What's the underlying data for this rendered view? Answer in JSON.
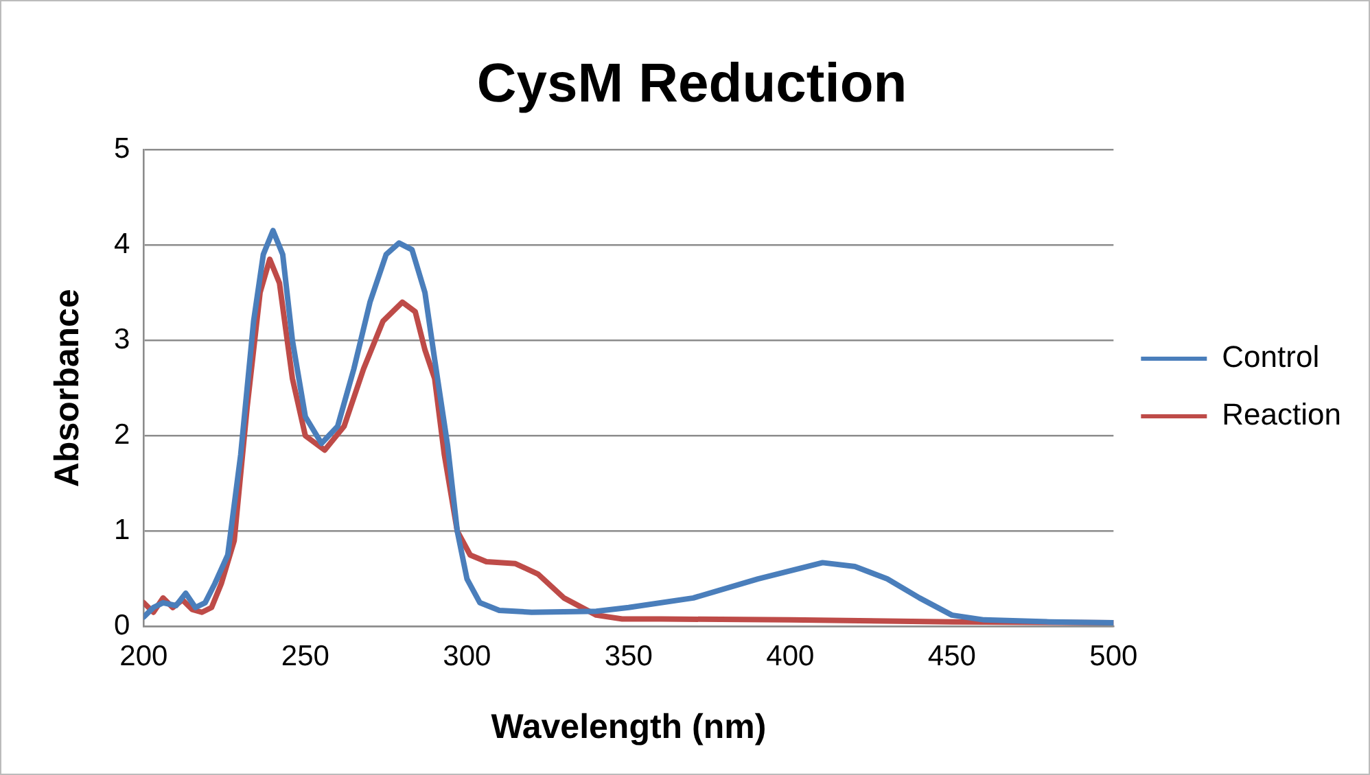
{
  "chart_data": {
    "type": "line",
    "title": "CysM Reduction",
    "xlabel": "Wavelength (nm)",
    "ylabel": "Absorbance",
    "xlim": [
      200,
      500
    ],
    "xticks": [
      200,
      250,
      300,
      350,
      400,
      450,
      500
    ],
    "ylim": [
      0,
      5
    ],
    "yticks": [
      0,
      1,
      2,
      3,
      4,
      5
    ],
    "grid": "y",
    "legend": "right",
    "marker": "none",
    "line_style": "solid",
    "series": [
      {
        "name": "Control",
        "color": "#4a7ebb",
        "x": [
          200,
          203,
          206,
          210,
          213,
          216,
          219,
          222,
          226,
          230,
          234,
          237,
          240,
          243,
          246,
          250,
          255,
          260,
          265,
          270,
          275,
          279,
          283,
          287,
          290,
          294,
          297,
          300,
          304,
          310,
          320,
          340,
          350,
          370,
          390,
          410,
          420,
          430,
          440,
          450,
          460,
          480,
          500
        ],
        "values": [
          0.1,
          0.2,
          0.25,
          0.22,
          0.35,
          0.2,
          0.25,
          0.45,
          0.75,
          1.8,
          3.2,
          3.9,
          4.15,
          3.9,
          3.0,
          2.2,
          1.92,
          2.1,
          2.7,
          3.4,
          3.9,
          4.02,
          3.95,
          3.5,
          2.8,
          1.9,
          1.0,
          0.5,
          0.25,
          0.17,
          0.15,
          0.16,
          0.2,
          0.3,
          0.5,
          0.67,
          0.63,
          0.5,
          0.3,
          0.12,
          0.07,
          0.05,
          0.04
        ]
      },
      {
        "name": "Reaction",
        "color": "#be4b48",
        "x": [
          200,
          203,
          206,
          209,
          212,
          215,
          218,
          221,
          224,
          228,
          232,
          236,
          239,
          242,
          246,
          250,
          256,
          262,
          268,
          274,
          280,
          284,
          287,
          290,
          293,
          297,
          301,
          306,
          315,
          322,
          330,
          340,
          348,
          360,
          400,
          450,
          500
        ],
        "values": [
          0.25,
          0.15,
          0.3,
          0.2,
          0.28,
          0.18,
          0.15,
          0.2,
          0.45,
          0.9,
          2.3,
          3.5,
          3.85,
          3.6,
          2.6,
          2.0,
          1.85,
          2.1,
          2.7,
          3.2,
          3.4,
          3.3,
          2.9,
          2.6,
          1.8,
          1.0,
          0.75,
          0.68,
          0.66,
          0.55,
          0.3,
          0.12,
          0.08,
          0.08,
          0.07,
          0.05,
          0.04
        ]
      }
    ]
  }
}
